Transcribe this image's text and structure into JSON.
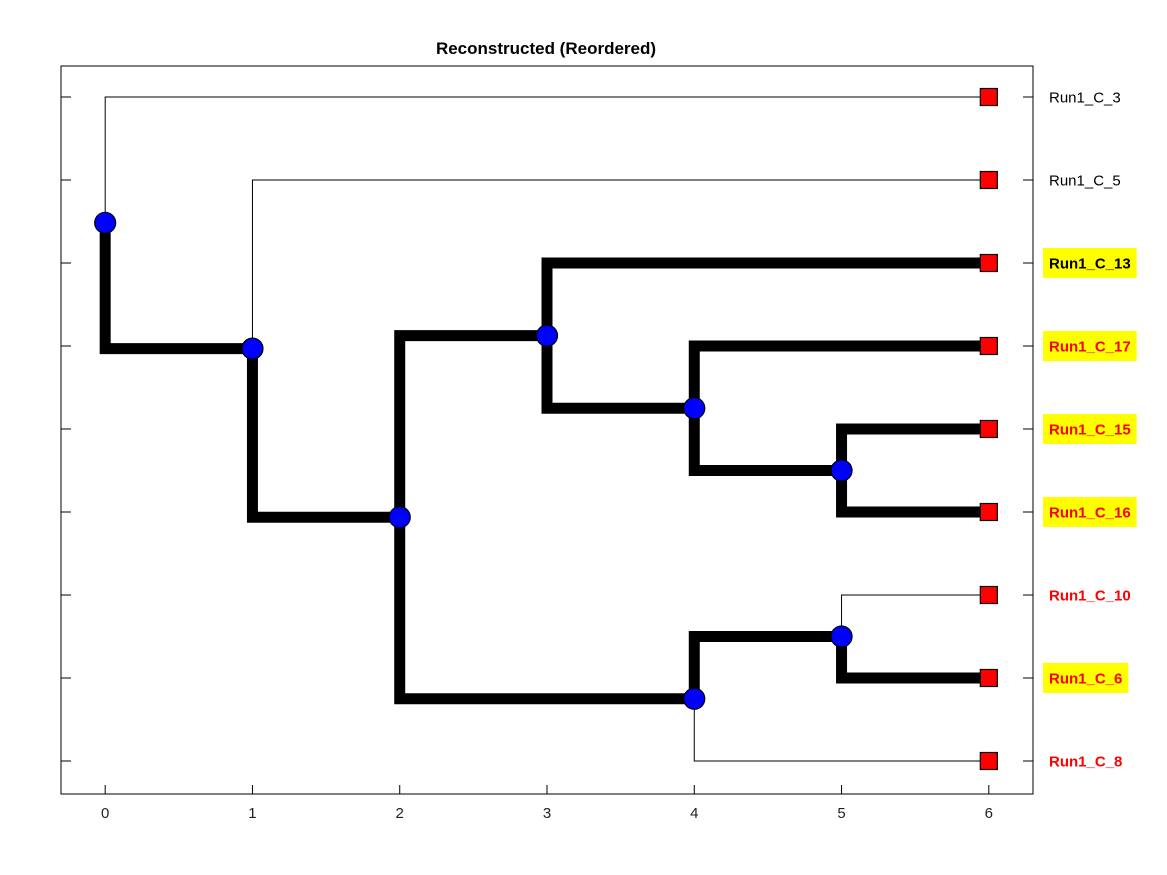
{
  "title": "Reconstructed (Reordered)",
  "chart_data": {
    "type": "dendrogram",
    "x_ticks": [
      0,
      1,
      2,
      3,
      4,
      5,
      6
    ],
    "xlim": [
      -0.3,
      6.3
    ],
    "colors": {
      "thick_branch": "#000000",
      "thin_branch": "#000000",
      "internal_node": "#0000ff",
      "leaf_marker": "#ff0000",
      "highlight_bg": "#ffff00",
      "label_red": "#ff0000",
      "label_black": "#000000"
    },
    "leaves": [
      {
        "label": "Run1_C_3",
        "depth": 6,
        "color": "black",
        "bold": false,
        "highlight": false
      },
      {
        "label": "Run1_C_5",
        "depth": 6,
        "color": "black",
        "bold": false,
        "highlight": false
      },
      {
        "label": "Run1_C_13",
        "depth": 6,
        "color": "black",
        "bold": true,
        "highlight": true
      },
      {
        "label": "Run1_C_17",
        "depth": 6,
        "color": "red",
        "bold": true,
        "highlight": true
      },
      {
        "label": "Run1_C_15",
        "depth": 6,
        "color": "red",
        "bold": true,
        "highlight": true
      },
      {
        "label": "Run1_C_16",
        "depth": 6,
        "color": "red",
        "bold": true,
        "highlight": true
      },
      {
        "label": "Run1_C_10",
        "depth": 6,
        "color": "red",
        "bold": true,
        "highlight": false
      },
      {
        "label": "Run1_C_6",
        "depth": 6,
        "color": "red",
        "bold": true,
        "highlight": true
      },
      {
        "label": "Run1_C_8",
        "depth": 6,
        "color": "red",
        "bold": true,
        "highlight": false
      }
    ],
    "nodes": [
      {
        "id": "n0",
        "depth": 0,
        "children": [
          {
            "ref": "L0",
            "thick": false
          },
          {
            "ref": "n1",
            "thick": true
          }
        ]
      },
      {
        "id": "n1",
        "depth": 1,
        "children": [
          {
            "ref": "L1",
            "thick": false
          },
          {
            "ref": "n2",
            "thick": true
          }
        ]
      },
      {
        "id": "n2",
        "depth": 2,
        "children": [
          {
            "ref": "n3a",
            "thick": true
          },
          {
            "ref": "n4b",
            "thick": true
          }
        ]
      },
      {
        "id": "n3a",
        "depth": 3,
        "children": [
          {
            "ref": "L2",
            "thick": true
          },
          {
            "ref": "n4a",
            "thick": true
          }
        ]
      },
      {
        "id": "n4a",
        "depth": 4,
        "children": [
          {
            "ref": "L3",
            "thick": true
          },
          {
            "ref": "n5a",
            "thick": true
          }
        ]
      },
      {
        "id": "n5a",
        "depth": 5,
        "children": [
          {
            "ref": "L4",
            "thick": true
          },
          {
            "ref": "L5",
            "thick": true
          }
        ]
      },
      {
        "id": "n4b",
        "depth": 4,
        "children": [
          {
            "ref": "n5b",
            "thick": true
          },
          {
            "ref": "L8",
            "thick": false
          }
        ]
      },
      {
        "id": "n5b",
        "depth": 5,
        "children": [
          {
            "ref": "L6",
            "thick": false
          },
          {
            "ref": "L7",
            "thick": true
          }
        ]
      }
    ]
  }
}
